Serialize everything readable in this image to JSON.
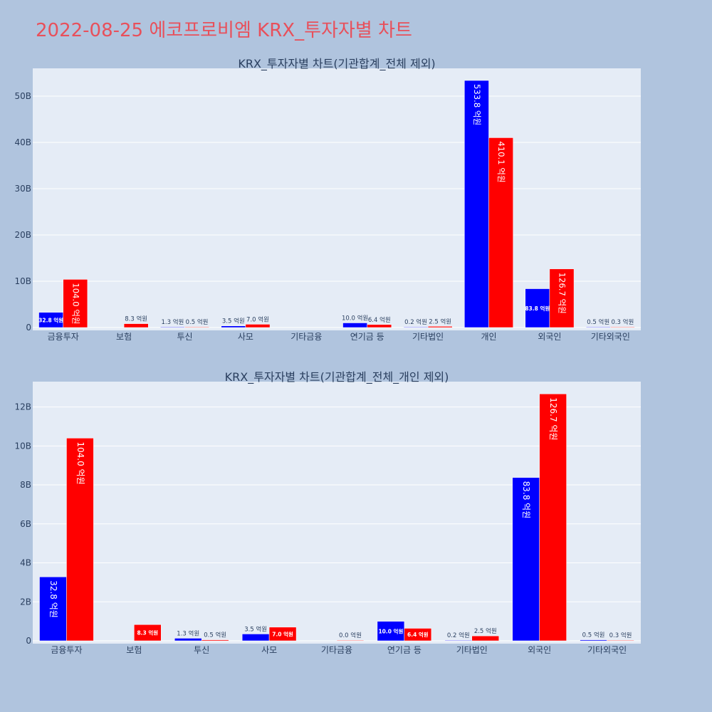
{
  "title": "2022-08-25 에코프로비엠 KRX_투자자별 차트",
  "colors": {
    "series_a": "#0000ff",
    "series_b": "#ff0000",
    "background": "#b0c4de",
    "plot_bg": "#e5ecf6",
    "title": "#e8505b"
  },
  "chart_data": [
    {
      "type": "bar",
      "title": "KRX_투자자별 차트(기관합계_전체 제외)",
      "categories": [
        "금융투자",
        "보험",
        "투신",
        "사모",
        "기타금융",
        "연기금 등",
        "기타법인",
        "개인",
        "외국인",
        "기타외국인"
      ],
      "ylim": [
        0,
        56000000000
      ],
      "yticks": [
        0,
        10000000000,
        20000000000,
        30000000000,
        40000000000,
        50000000000
      ],
      "ytick_labels": [
        "0",
        "10B",
        "20B",
        "30B",
        "40B",
        "50B"
      ],
      "grid": true,
      "series": [
        {
          "values": [
            3280000000,
            null,
            130000000,
            350000000,
            null,
            1000000000,
            20000000,
            53380000000,
            8380000000,
            50000000
          ],
          "labels": [
            "32.8 억원",
            "",
            "1.3 억원",
            "3.5 억원",
            "",
            "10.0 억원",
            "0.2 억원",
            "533.8 억원",
            "83.8 억원",
            "0.5 억원"
          ],
          "color": "#0000ff"
        },
        {
          "values": [
            10400000000,
            830000000,
            50000000,
            700000000,
            null,
            640000000,
            250000000,
            41010000000,
            12670000000,
            30000000
          ],
          "labels": [
            "104.0 억원",
            "8.3 억원",
            "0.5 억원",
            "7.0 억원",
            "",
            "6.4 억원",
            "2.5 억원",
            "410.1 억원",
            "126.7 억원",
            "0.3 억원"
          ],
          "color": "#ff0000"
        }
      ]
    },
    {
      "type": "bar",
      "title": "KRX_투자자별 차트(기관합계_전체_개인 제외)",
      "categories": [
        "금융투자",
        "보험",
        "투신",
        "사모",
        "기타금융",
        "연기금 등",
        "기타법인",
        "외국인",
        "기타외국인"
      ],
      "ylim": [
        0,
        13300000000
      ],
      "yticks": [
        0,
        2000000000,
        4000000000,
        6000000000,
        8000000000,
        10000000000,
        12000000000
      ],
      "ytick_labels": [
        "0",
        "2B",
        "4B",
        "6B",
        "8B",
        "10B",
        "12B"
      ],
      "grid": true,
      "series": [
        {
          "values": [
            3280000000,
            null,
            130000000,
            350000000,
            null,
            1000000000,
            20000000,
            8380000000,
            50000000
          ],
          "labels": [
            "32.8 억원",
            "",
            "1.3 억원",
            "3.5 억원",
            "",
            "10.0 억원",
            "0.2 억원",
            "83.8 억원",
            "0.5 억원"
          ],
          "color": "#0000ff"
        },
        {
          "values": [
            10400000000,
            830000000,
            50000000,
            700000000,
            0,
            640000000,
            250000000,
            12670000000,
            30000000
          ],
          "labels": [
            "104.0 억원",
            "8.3 억원",
            "0.5 억원",
            "7.0 억원",
            "0.0 억원",
            "6.4 억원",
            "2.5 억원",
            "126.7 억원",
            "0.3 억원"
          ],
          "color": "#ff0000"
        }
      ]
    }
  ]
}
